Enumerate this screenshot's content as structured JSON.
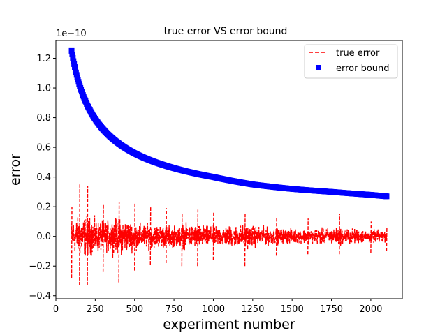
{
  "chart_data": {
    "type": "line",
    "title": "true error VS error bound",
    "xlabel": "experiment number",
    "ylabel": "error",
    "y_offset_text": "1e−10",
    "xlim": [
      0,
      2200
    ],
    "ylim": [
      -0.42,
      1.32
    ],
    "x_ticks": [
      0,
      250,
      500,
      750,
      1000,
      1250,
      1500,
      1750,
      2000
    ],
    "x_tick_labels": [
      "0",
      "250",
      "500",
      "750",
      "1000",
      "1250",
      "1500",
      "1750",
      "2000"
    ],
    "y_ticks": [
      -0.4,
      -0.2,
      0.0,
      0.2,
      0.4,
      0.6,
      0.8,
      1.0,
      1.2
    ],
    "y_tick_labels": [
      "−0.4",
      "−0.2",
      "0.0",
      "0.2",
      "0.4",
      "0.6",
      "0.8",
      "1.0",
      "1.2"
    ],
    "legend_position": "upper right",
    "series": [
      {
        "name": "true error",
        "style": "dashed line",
        "color": "#ff0000",
        "x_range": [
          100,
          2100
        ],
        "envelope": [
          {
            "x": 100,
            "low": -0.28,
            "high": 0.2
          },
          {
            "x": 150,
            "low": -0.33,
            "high": 0.35
          },
          {
            "x": 200,
            "low": -0.33,
            "high": 0.34
          },
          {
            "x": 300,
            "low": -0.24,
            "high": 0.22
          },
          {
            "x": 400,
            "low": -0.31,
            "high": 0.23
          },
          {
            "x": 500,
            "low": -0.23,
            "high": 0.22
          },
          {
            "x": 600,
            "low": -0.19,
            "high": 0.2
          },
          {
            "x": 700,
            "low": -0.18,
            "high": 0.19
          },
          {
            "x": 800,
            "low": -0.2,
            "high": 0.16
          },
          {
            "x": 900,
            "low": -0.2,
            "high": 0.18
          },
          {
            "x": 1000,
            "low": -0.16,
            "high": 0.17
          },
          {
            "x": 1200,
            "low": -0.2,
            "high": 0.15
          },
          {
            "x": 1400,
            "low": -0.13,
            "high": 0.13
          },
          {
            "x": 1600,
            "low": -0.12,
            "high": 0.12
          },
          {
            "x": 1800,
            "low": -0.12,
            "high": 0.15
          },
          {
            "x": 2000,
            "low": -0.11,
            "high": 0.1
          },
          {
            "x": 2100,
            "low": -0.1,
            "high": 0.06
          }
        ]
      },
      {
        "name": "error bound",
        "style": "square markers",
        "color": "#0000ff",
        "x_range": [
          100,
          2100
        ],
        "model": "y = 1.25 * sqrt(100 / x)",
        "samples": [
          {
            "x": 100,
            "y": 1.25
          },
          {
            "x": 250,
            "y": 0.79
          },
          {
            "x": 500,
            "y": 0.56
          },
          {
            "x": 750,
            "y": 0.46
          },
          {
            "x": 1000,
            "y": 0.4
          },
          {
            "x": 1250,
            "y": 0.35
          },
          {
            "x": 1500,
            "y": 0.32
          },
          {
            "x": 1750,
            "y": 0.3
          },
          {
            "x": 2000,
            "y": 0.28
          },
          {
            "x": 2100,
            "y": 0.27
          }
        ]
      }
    ]
  }
}
